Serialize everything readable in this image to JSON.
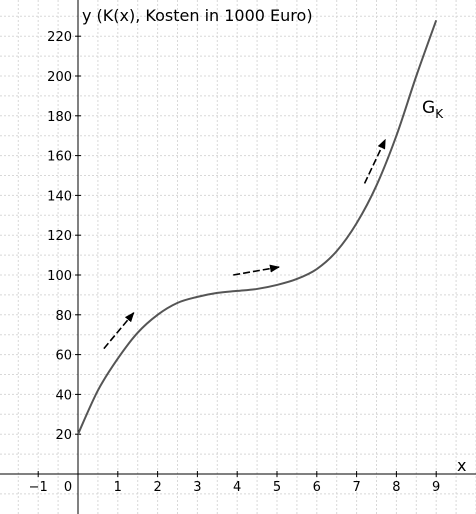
{
  "chart_data": {
    "type": "line",
    "title": "",
    "xlabel": "x",
    "ylabel": "y (K(x), Kosten in 1000 Euro)",
    "xlim": [
      -1.9,
      10.0
    ],
    "ylim": [
      -10,
      230
    ],
    "grid": true,
    "x_ticks": [
      -1,
      0,
      1,
      2,
      3,
      4,
      5,
      6,
      7,
      8,
      9
    ],
    "x_tick_labels": [
      "−1",
      "0",
      "1",
      "2",
      "3",
      "4",
      "5",
      "6",
      "7",
      "8",
      "9"
    ],
    "y_ticks": [
      20,
      40,
      60,
      80,
      100,
      120,
      140,
      160,
      180,
      200,
      220
    ],
    "y_tick_labels": [
      "20",
      "40",
      "60",
      "80",
      "100",
      "120",
      "140",
      "160",
      "180",
      "200",
      "220"
    ],
    "series": [
      {
        "name_main": "G",
        "name_sub": "K",
        "x": [
          0,
          0.5,
          1,
          1.5,
          2,
          2.5,
          3,
          3.5,
          4,
          4.5,
          5,
          5.5,
          6,
          6.5,
          7,
          7.5,
          8,
          8.5,
          9
        ],
        "y": [
          20,
          42,
          58,
          71,
          80,
          86,
          89,
          91,
          92,
          93,
          95,
          98,
          103,
          112,
          126,
          145,
          170,
          200,
          228
        ]
      }
    ],
    "arrows": [
      {
        "from": [
          0.65,
          63
        ],
        "to": [
          1.4,
          81
        ]
      },
      {
        "from": [
          3.9,
          100
        ],
        "to": [
          5.05,
          104
        ]
      },
      {
        "from": [
          7.2,
          146
        ],
        "to": [
          7.72,
          168
        ]
      }
    ],
    "colors": {
      "curve": "#555555",
      "axes": "#000000",
      "grid": "#d8d8d8",
      "arrows": "#000000"
    }
  }
}
